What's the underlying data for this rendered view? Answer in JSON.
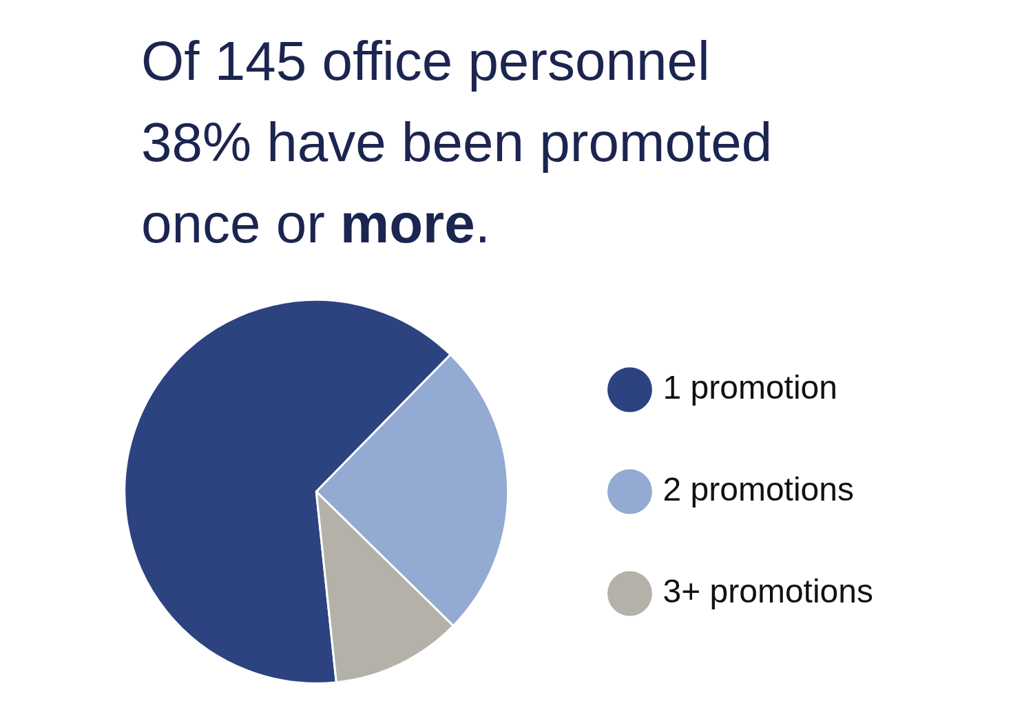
{
  "chart_data": {
    "type": "pie",
    "title": "Of 145 office personnel 38% have been promoted once or more.",
    "categories": [
      "1 promotion",
      "2 promotions",
      "3+ promotions"
    ],
    "values": [
      64,
      25,
      11
    ],
    "colors": [
      "#2c4380",
      "#93aad2",
      "#b4b1a8"
    ],
    "legend": "right"
  }
}
